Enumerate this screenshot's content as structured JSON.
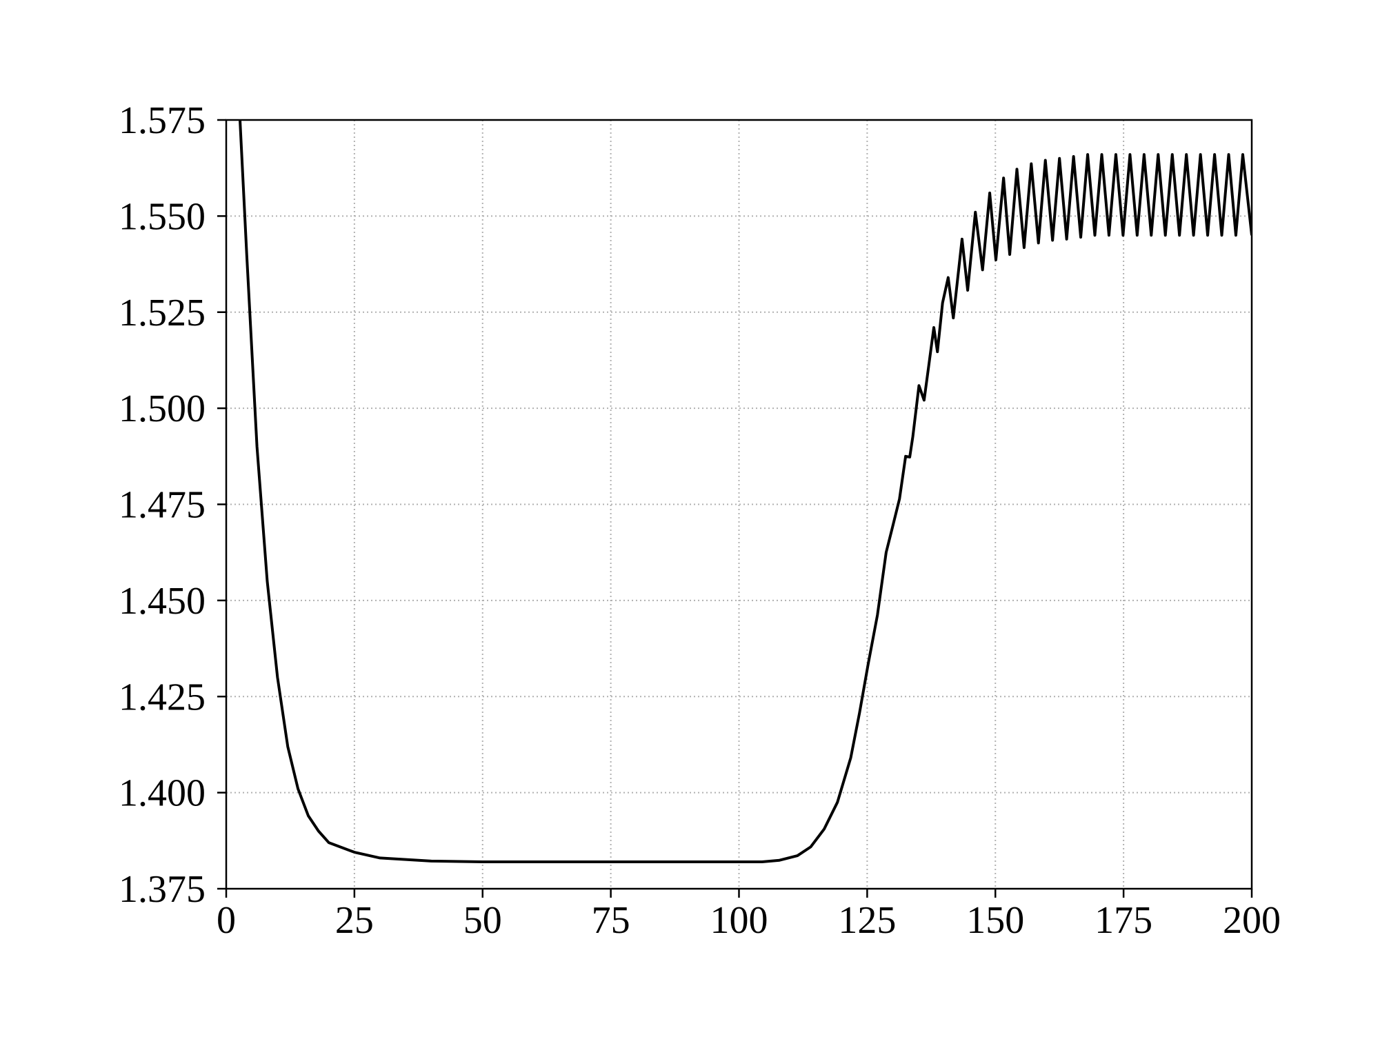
{
  "chart_data": {
    "type": "line",
    "x": [
      2.5,
      4,
      6,
      8,
      10,
      12,
      14,
      16,
      18,
      20,
      25,
      30,
      40,
      50,
      75,
      100,
      104.5,
      107.9,
      111.4,
      114,
      116.6,
      119.2,
      121.8,
      123.5,
      125.2,
      127,
      128.7,
      130,
      131.3,
      132.5,
      133.3,
      133.9,
      135.1,
      136.1,
      137,
      138,
      138.7,
      139.7,
      140.8,
      141.8,
      143.5,
      144.6,
      146.1,
      147.5,
      148.9,
      150.1,
      151.6,
      152.8,
      154.2,
      155.6,
      157,
      158.4,
      159.75,
      161.15,
      162.5,
      163.9,
      165.25,
      166.65,
      168,
      169.4,
      170.75,
      172.15,
      173.5,
      174.9,
      176.25,
      177.65,
      179,
      180.4,
      181.75,
      183.15,
      184.5,
      185.9,
      187.25,
      188.65,
      190,
      191.4,
      192.75,
      194.15,
      195.5,
      196.9,
      198.25,
      200
    ],
    "series": [
      {
        "color": "#000000",
        "values": [
          1.58,
          1.54,
          1.49,
          1.455,
          1.43,
          1.412,
          1.401,
          1.394,
          1.39,
          1.387,
          1.3845,
          1.383,
          1.3822,
          1.382,
          1.382,
          1.382,
          1.382,
          1.3824,
          1.3836,
          1.3859,
          1.3905,
          1.3975,
          1.4091,
          1.4207,
          1.4335,
          1.4462,
          1.4625,
          1.4694,
          1.4764,
          1.4875,
          1.4873,
          1.4926,
          1.5059,
          1.5021,
          1.511,
          1.521,
          1.5147,
          1.5274,
          1.534,
          1.5235,
          1.544,
          1.5307,
          1.551,
          1.536,
          1.556,
          1.5386,
          1.5599,
          1.54,
          1.5622,
          1.5418,
          1.5636,
          1.543,
          1.5645,
          1.5437,
          1.565,
          1.544,
          1.5655,
          1.5445,
          1.566,
          1.545,
          1.566,
          1.545,
          1.566,
          1.545,
          1.566,
          1.545,
          1.566,
          1.545,
          1.566,
          1.545,
          1.566,
          1.545,
          1.566,
          1.545,
          1.566,
          1.545,
          1.566,
          1.545,
          1.566,
          1.545,
          1.566,
          1.545
        ]
      }
    ],
    "xlim": [
      0,
      200
    ],
    "ylim": [
      1.375,
      1.575
    ],
    "xticks": [
      0,
      25,
      50,
      75,
      100,
      125,
      150,
      175,
      200
    ],
    "yticks": [
      1.375,
      {
        "value": 1.4,
        "label": "1.400"
      },
      1.425,
      {
        "value": 1.45,
        "label": "1.450"
      },
      1.475,
      {
        "value": 1.5,
        "label": "1.500"
      },
      1.525,
      {
        "value": 1.55,
        "label": "1.550"
      },
      1.575
    ],
    "grid": true
  }
}
